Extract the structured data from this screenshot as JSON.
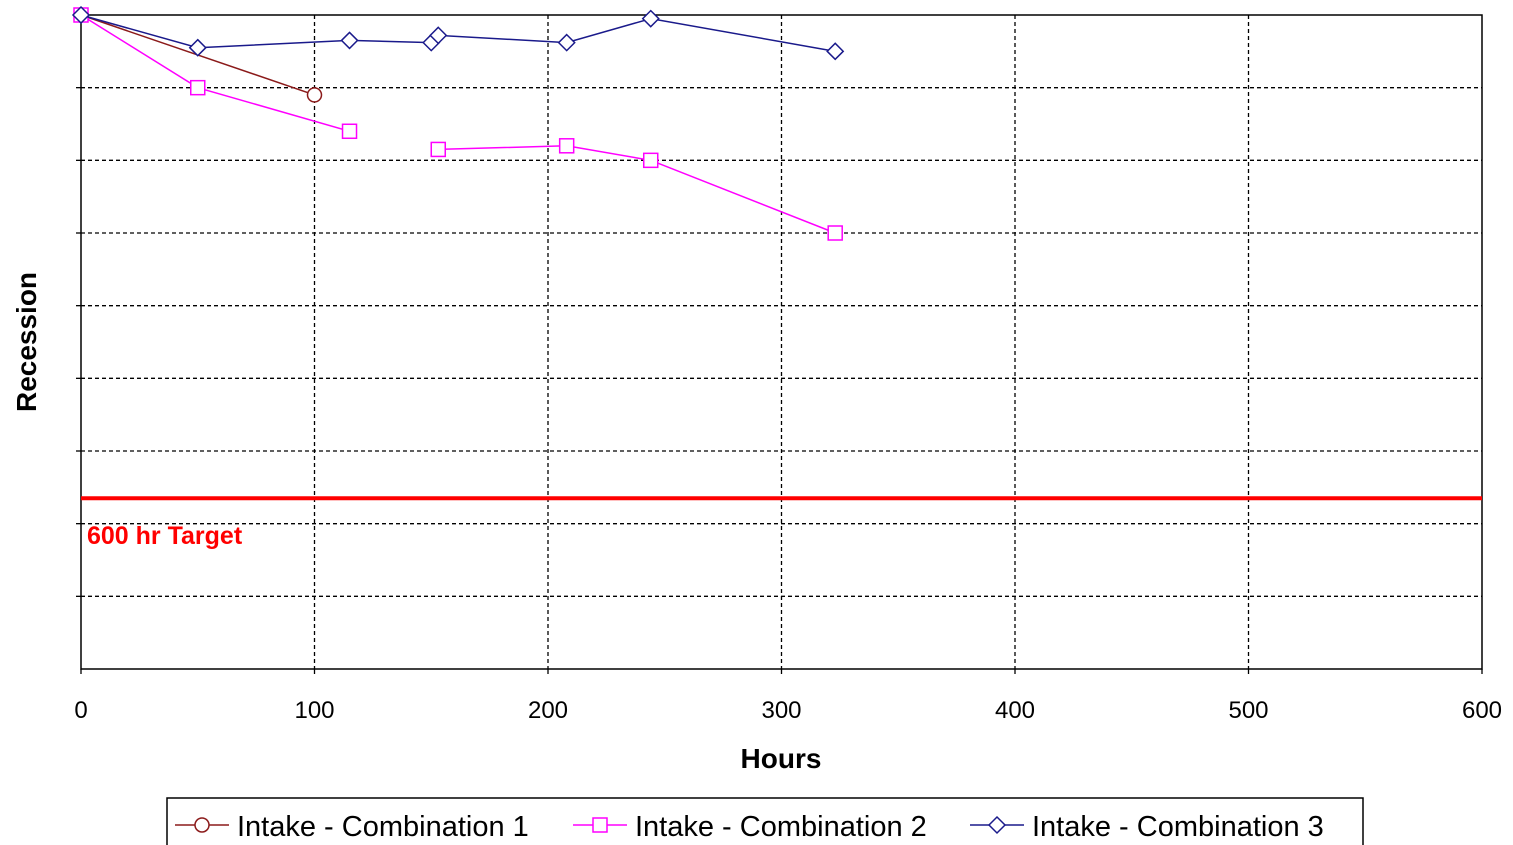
{
  "chart_data": {
    "type": "line",
    "title": "",
    "xlabel": "Hours",
    "ylabel": "Recession",
    "xlim": [
      0,
      600
    ],
    "ylim": [
      0,
      9
    ],
    "xticks": [
      0,
      100,
      200,
      300,
      400,
      500,
      600
    ],
    "ytick_labels_shown": false,
    "grid": true,
    "legend_position": "bottom",
    "series": [
      {
        "name": "Intake - Combination 1",
        "color": "#8b1a1a",
        "marker": "circle",
        "x": [
          0,
          100
        ],
        "y": [
          9.0,
          7.9
        ]
      },
      {
        "name": "Intake - Combination 2",
        "color": "#ff00ff",
        "marker": "square",
        "segments": [
          {
            "x": [
              0,
              50,
              115
            ],
            "y": [
              9.0,
              8.0,
              7.4
            ]
          },
          {
            "x": [
              153,
              208,
              244,
              323
            ],
            "y": [
              7.15,
              7.2,
              7.0,
              6.0
            ]
          }
        ]
      },
      {
        "name": "Intake - Combination 3",
        "color": "#1a1a8b",
        "marker": "diamond",
        "x": [
          0,
          50,
          115,
          150,
          153,
          208,
          244,
          323
        ],
        "y": [
          9.0,
          8.55,
          8.65,
          8.62,
          8.72,
          8.62,
          8.95,
          8.5
        ]
      }
    ],
    "reference_lines": [
      {
        "label": "600 hr Target",
        "y": 2.35,
        "color": "#ff0000"
      }
    ]
  }
}
